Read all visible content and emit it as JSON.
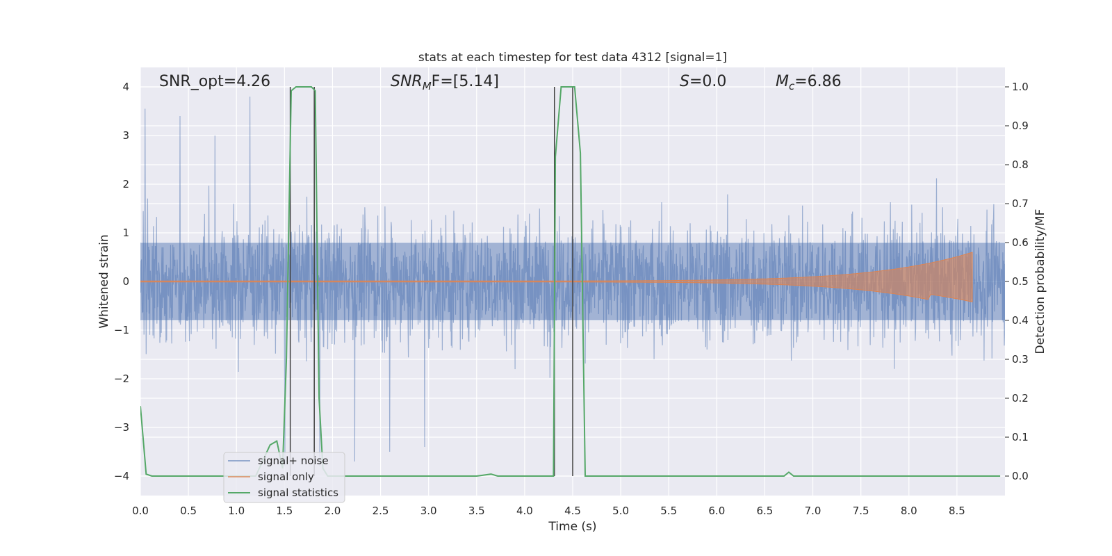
{
  "colors": {
    "axes_bg": "#eaeaf2",
    "grid": "#ffffff",
    "noise": "#4c72b0",
    "signal": "#dd8452",
    "stats": "#55a868",
    "vline": "#404040"
  },
  "chart_data": {
    "type": "line",
    "title": "stats at each timestep for test data 4312 [signal=1]",
    "xlabel": "Time (s)",
    "ylabel": "Whitened strain",
    "y2label": "Detection probability/MF",
    "xlim": [
      0,
      9.0
    ],
    "ylim": [
      -4.4,
      4.4
    ],
    "y2lim": [
      -0.05,
      1.05
    ],
    "xticks": [
      0.0,
      0.5,
      1.0,
      1.5,
      2.0,
      2.5,
      3.0,
      3.5,
      4.0,
      4.5,
      5.0,
      5.5,
      6.0,
      6.5,
      7.0,
      7.5,
      8.0,
      8.5
    ],
    "xtick_labels": [
      "0.0",
      "0.5",
      "1.0",
      "1.5",
      "2.0",
      "2.5",
      "3.0",
      "3.5",
      "4.0",
      "4.5",
      "5.0",
      "5.5",
      "6.0",
      "6.5",
      "7.0",
      "7.5",
      "8.0",
      "8.5"
    ],
    "yticks": [
      -4,
      -3,
      -2,
      -1,
      0,
      1,
      2,
      3,
      4
    ],
    "ytick_labels": [
      "−4",
      "−3",
      "−2",
      "−1",
      "0",
      "1",
      "2",
      "3",
      "4"
    ],
    "y2ticks": [
      0.0,
      0.1,
      0.2,
      0.3,
      0.4,
      0.5,
      0.6,
      0.7,
      0.8,
      0.9,
      1.0
    ],
    "y2tick_labels": [
      "0.0",
      "0.1",
      "0.2",
      "0.3",
      "0.4",
      "0.5",
      "0.6",
      "0.7",
      "0.8",
      "0.9",
      "1.0"
    ],
    "grid": true,
    "legend_position": "lower-left",
    "annotations": {
      "snr_opt": "SNR_opt=4.26",
      "snr_mf_main": "SNR",
      "snr_mf_sub": "M",
      "snr_mf_rest": "F=[5.14]",
      "s_main": "S",
      "s_rest": "=0.0",
      "mc_main": "M",
      "mc_sub": "c",
      "mc_rest": "=6.86"
    },
    "series": [
      {
        "name": "signal+ noise",
        "kind": "noise",
        "x_range": [
          0,
          9.0
        ],
        "core_amplitude": 0.8,
        "typical_envelope": 1.5,
        "peak_values_approx": [
          3.55,
          3.4,
          3.0,
          3.8,
          -3.8,
          -3.8,
          -3.7,
          -3.5,
          -3.4
        ]
      },
      {
        "name": "signal only",
        "kind": "chirp",
        "x_range": [
          0,
          8.66
        ],
        "start_amplitude": 0.01,
        "peak_amplitude": 0.6,
        "peak_time": 8.66
      },
      {
        "name": "signal statistics",
        "kind": "line",
        "axis": "right",
        "x": [
          0.0,
          0.06,
          0.12,
          0.2,
          0.3,
          0.5,
          0.8,
          1.0,
          1.2,
          1.35,
          1.42,
          1.48,
          1.52,
          1.57,
          1.62,
          1.68,
          1.74,
          1.78,
          1.82,
          1.86,
          1.9,
          1.95,
          2.05,
          2.5,
          3.0,
          3.5,
          3.65,
          3.72,
          3.8,
          4.0,
          4.2,
          4.3,
          4.32,
          4.38,
          4.45,
          4.52,
          4.58,
          4.63,
          4.7,
          5.0,
          5.5,
          6.0,
          6.5,
          6.7,
          6.75,
          6.8,
          7.0,
          7.5,
          8.0,
          8.5,
          8.95
        ],
        "y": [
          0.18,
          0.005,
          0.0,
          0.0,
          0.0,
          0.0,
          0.0,
          0.0,
          0.0,
          0.08,
          0.09,
          0.02,
          0.3,
          0.99,
          1.0,
          1.0,
          1.0,
          1.0,
          0.99,
          0.2,
          0.02,
          0.0,
          0.0,
          0.0,
          0.0,
          0.0,
          0.005,
          0.0,
          0.0,
          0.0,
          0.0,
          0.0,
          0.82,
          1.0,
          1.0,
          1.0,
          0.83,
          0.0,
          0.0,
          0.0,
          0.0,
          0.0,
          0.0,
          0.0,
          0.01,
          0.0,
          0.0,
          0.0,
          0.0,
          0.0,
          0.0
        ]
      }
    ],
    "vertical_markers": [
      1.56,
      1.81,
      4.31,
      4.5
    ]
  }
}
